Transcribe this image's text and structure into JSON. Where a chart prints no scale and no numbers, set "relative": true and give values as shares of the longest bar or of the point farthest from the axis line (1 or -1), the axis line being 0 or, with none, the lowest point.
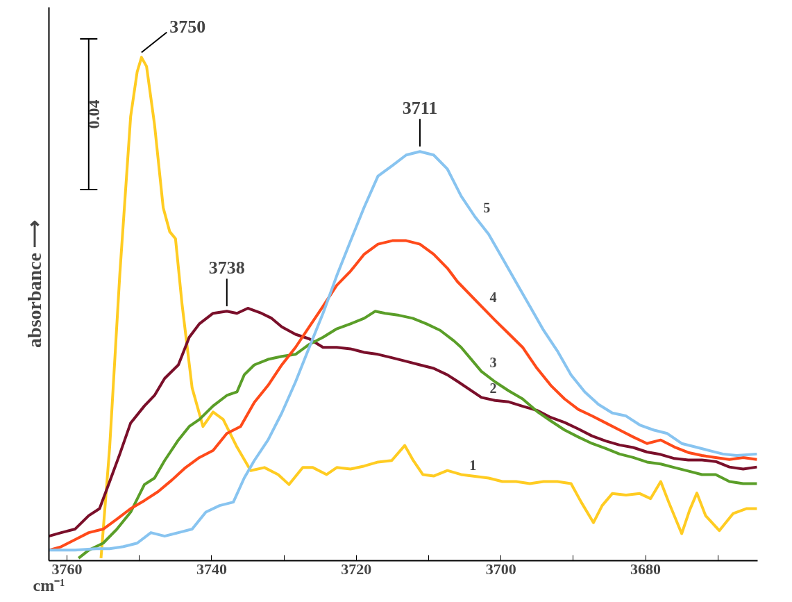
{
  "chart_data": {
    "type": "line",
    "relative": true,
    "xlabel": "cm⁻¹",
    "ylabel": "absorbance ⟶",
    "xlim": [
      3762.5,
      3664.5
    ],
    "xticks": [
      3760,
      {
        "value": 3750,
        "label": null
      },
      3740,
      {
        "value": 3730,
        "label": null
      },
      3720,
      {
        "value": 3710,
        "label": null
      },
      3700,
      {
        "value": 3690,
        "label": null
      },
      3680,
      {
        "value": 3670,
        "label": null
      }
    ],
    "tick_labels": "x",
    "grid": false,
    "marker": "none",
    "line_style": "solid",
    "annotations": [
      {
        "text": "3750",
        "x": 3749.7,
        "y": 1.0
      },
      {
        "text": "3738",
        "x": 3737.9,
        "y": 0.493
      },
      {
        "text": "3711",
        "x": 3711.2,
        "y": 0.812
      },
      "0.04"
    ],
    "series": [
      {
        "name": "1",
        "color": "#ffcc22",
        "x": [
          3755.3,
          3754.1,
          3752.7,
          3751.2,
          3750.3,
          3749.7,
          3749.0,
          3747.9,
          3746.7,
          3745.8,
          3745.0,
          3744.1,
          3742.7,
          3741.2,
          3739.8,
          3738.4,
          3736.5,
          3734.6,
          3732.7,
          3730.8,
          3729.3,
          3727.4,
          3726.0,
          3724.1,
          3722.7,
          3720.8,
          3718.9,
          3717.0,
          3715.1,
          3713.3,
          3712.2,
          3710.8,
          3709.3,
          3707.4,
          3705.5,
          3701.7,
          3699.8,
          3697.9,
          3696.0,
          3694.1,
          3692.2,
          3690.3,
          3688.9,
          3687.2,
          3686.0,
          3684.6,
          3682.7,
          3680.8,
          3679.3,
          3677.9,
          3676.8,
          3675.0,
          3673.9,
          3672.9,
          3671.7,
          3669.8,
          3667.9,
          3666.0,
          3664.6
        ],
        "values": [
          0,
          0.222,
          0.567,
          0.882,
          0.971,
          1.0,
          0.982,
          0.866,
          0.7,
          0.652,
          0.638,
          0.508,
          0.34,
          0.263,
          0.292,
          0.277,
          0.222,
          0.175,
          0.181,
          0.167,
          0.147,
          0.181,
          0.181,
          0.167,
          0.181,
          0.178,
          0.184,
          0.192,
          0.195,
          0.225,
          0.197,
          0.167,
          0.164,
          0.175,
          0.167,
          0.16,
          0.153,
          0.153,
          0.149,
          0.153,
          0.153,
          0.149,
          0.112,
          0.071,
          0.105,
          0.129,
          0.126,
          0.129,
          0.119,
          0.153,
          0.112,
          0.049,
          0.096,
          0.13,
          0.085,
          0.055,
          0.089,
          0.099,
          0.099
        ]
      },
      {
        "name": "2",
        "color": "#7a0f2a",
        "x": [
          3762.5,
          3760.8,
          3758.9,
          3757.0,
          3755.5,
          3754.1,
          3752.7,
          3751.2,
          3749.3,
          3747.9,
          3746.5,
          3744.6,
          3743.1,
          3741.7,
          3739.8,
          3737.9,
          3736.5,
          3735.0,
          3733.1,
          3731.7,
          3730.3,
          3728.4,
          3726.5,
          3724.6,
          3722.7,
          3720.8,
          3718.9,
          3717.0,
          3715.0,
          3713.1,
          3711.2,
          3709.3,
          3707.4,
          3706.0,
          3702.7,
          3700.8,
          3698.9,
          3696.9,
          3695.0,
          3693.1,
          3691.2,
          3689.3,
          3687.4,
          3685.5,
          3683.6,
          3681.7,
          3679.8,
          3677.9,
          3676.0,
          3674.1,
          3672.2,
          3670.3,
          3668.4,
          3666.5,
          3664.6
        ],
        "values": [
          0.044,
          0.051,
          0.058,
          0.085,
          0.099,
          0.153,
          0.208,
          0.27,
          0.304,
          0.325,
          0.359,
          0.386,
          0.441,
          0.468,
          0.489,
          0.493,
          0.489,
          0.499,
          0.489,
          0.479,
          0.462,
          0.447,
          0.438,
          0.421,
          0.421,
          0.418,
          0.411,
          0.407,
          0.4,
          0.393,
          0.386,
          0.379,
          0.366,
          0.353,
          0.321,
          0.315,
          0.312,
          0.303,
          0.295,
          0.281,
          0.271,
          0.258,
          0.244,
          0.234,
          0.226,
          0.221,
          0.212,
          0.207,
          0.199,
          0.196,
          0.196,
          0.193,
          0.182,
          0.178,
          0.182
        ]
      },
      {
        "name": "3",
        "color": "#5a9e28",
        "x": [
          3758.4,
          3757.0,
          3755.0,
          3753.1,
          3751.2,
          3749.3,
          3747.9,
          3746.5,
          3744.6,
          3743.1,
          3741.7,
          3739.8,
          3737.9,
          3736.5,
          3735.5,
          3734.1,
          3732.2,
          3730.3,
          3728.4,
          3726.5,
          3724.6,
          3722.7,
          3720.8,
          3718.9,
          3717.4,
          3716.0,
          3714.1,
          3712.2,
          3710.3,
          3708.4,
          3706.5,
          3705.5,
          3702.7,
          3700.8,
          3698.9,
          3697.0,
          3695.0,
          3693.1,
          3691.2,
          3689.3,
          3687.4,
          3685.5,
          3683.6,
          3681.7,
          3679.8,
          3677.9,
          3676.0,
          3674.1,
          3672.2,
          3670.3,
          3668.4,
          3666.5,
          3664.6
        ],
        "values": [
          0,
          0.016,
          0.03,
          0.058,
          0.092,
          0.147,
          0.16,
          0.195,
          0.236,
          0.263,
          0.277,
          0.304,
          0.325,
          0.332,
          0.366,
          0.386,
          0.397,
          0.403,
          0.407,
          0.427,
          0.441,
          0.458,
          0.468,
          0.479,
          0.493,
          0.489,
          0.485,
          0.479,
          0.468,
          0.455,
          0.434,
          0.421,
          0.373,
          0.352,
          0.334,
          0.318,
          0.293,
          0.274,
          0.256,
          0.242,
          0.229,
          0.219,
          0.208,
          0.201,
          0.192,
          0.188,
          0.181,
          0.174,
          0.167,
          0.167,
          0.153,
          0.149,
          0.149
        ]
      },
      {
        "name": "4",
        "color": "#ff4a1a",
        "x": [
          3762.5,
          3760.8,
          3758.9,
          3757.0,
          3755.0,
          3753.1,
          3751.2,
          3749.3,
          3747.4,
          3745.5,
          3743.6,
          3741.7,
          3739.8,
          3737.9,
          3736.0,
          3734.1,
          3732.2,
          3730.3,
          3728.4,
          3726.5,
          3724.6,
          3722.7,
          3720.8,
          3718.9,
          3717.0,
          3715.0,
          3713.1,
          3711.2,
          3709.3,
          3707.4,
          3706.0,
          3702.7,
          3700.8,
          3698.9,
          3697.0,
          3695.0,
          3693.1,
          3691.2,
          3689.3,
          3687.4,
          3685.5,
          3683.6,
          3681.7,
          3679.8,
          3677.9,
          3676.0,
          3674.1,
          3672.2,
          3670.3,
          3668.4,
          3666.5,
          3664.6
        ],
        "values": [
          0.016,
          0.023,
          0.037,
          0.051,
          0.058,
          0.078,
          0.099,
          0.115,
          0.133,
          0.156,
          0.181,
          0.201,
          0.215,
          0.249,
          0.263,
          0.311,
          0.345,
          0.386,
          0.421,
          0.462,
          0.503,
          0.545,
          0.573,
          0.607,
          0.627,
          0.634,
          0.634,
          0.627,
          0.607,
          0.579,
          0.552,
          0.503,
          0.475,
          0.448,
          0.421,
          0.379,
          0.345,
          0.318,
          0.297,
          0.284,
          0.27,
          0.256,
          0.242,
          0.229,
          0.236,
          0.222,
          0.211,
          0.205,
          0.201,
          0.197,
          0.201,
          0.197
        ]
      },
      {
        "name": "5",
        "color": "#88c4f0",
        "x": [
          3762.5,
          3758.9,
          3756.0,
          3754.1,
          3752.2,
          3750.3,
          3748.4,
          3746.5,
          3744.6,
          3742.7,
          3740.8,
          3738.9,
          3737.0,
          3735.5,
          3734.1,
          3732.2,
          3730.3,
          3728.4,
          3726.5,
          3724.6,
          3722.7,
          3720.8,
          3718.9,
          3717.0,
          3715.0,
          3713.1,
          3711.2,
          3709.3,
          3707.4,
          3705.5,
          3703.6,
          3701.7,
          3699.8,
          3697.9,
          3696.0,
          3694.1,
          3692.2,
          3690.3,
          3688.4,
          3686.5,
          3684.6,
          3682.7,
          3680.8,
          3678.9,
          3677.0,
          3675.0,
          3673.1,
          3671.2,
          3669.3,
          3667.4,
          3664.6
        ],
        "values": [
          0.016,
          0.016,
          0.019,
          0.019,
          0.023,
          0.03,
          0.051,
          0.044,
          0.051,
          0.058,
          0.092,
          0.105,
          0.112,
          0.16,
          0.195,
          0.236,
          0.29,
          0.352,
          0.421,
          0.489,
          0.564,
          0.633,
          0.701,
          0.763,
          0.784,
          0.805,
          0.812,
          0.805,
          0.777,
          0.723,
          0.682,
          0.647,
          0.599,
          0.551,
          0.503,
          0.455,
          0.414,
          0.366,
          0.332,
          0.307,
          0.29,
          0.284,
          0.266,
          0.256,
          0.249,
          0.229,
          0.222,
          0.215,
          0.208,
          0.205,
          0.208
        ]
      }
    ]
  }
}
